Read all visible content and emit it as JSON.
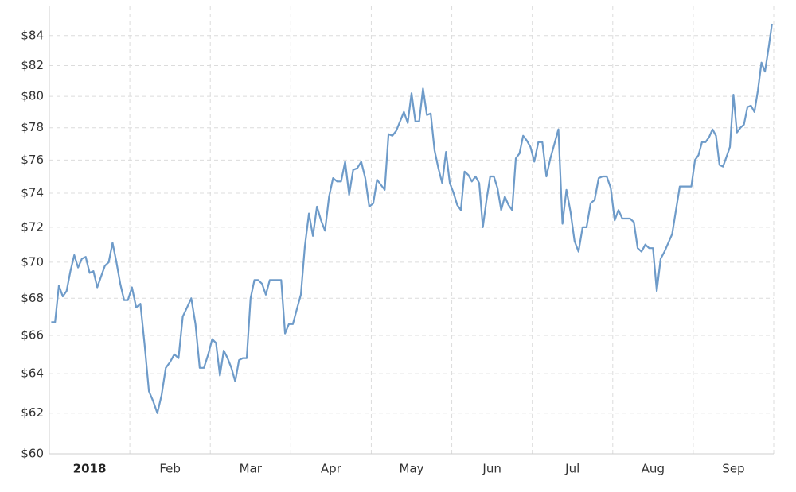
{
  "chart_data": {
    "type": "line",
    "color": "#6e9bc9",
    "log_scale": true,
    "grid": true,
    "ylim": [
      60,
      86
    ],
    "yticks": [
      {
        "value": 60,
        "label": "$60"
      },
      {
        "value": 62,
        "label": "$62"
      },
      {
        "value": 64,
        "label": "$64"
      },
      {
        "value": 66,
        "label": "$66"
      },
      {
        "value": 68,
        "label": "$68"
      },
      {
        "value": 70,
        "label": "$70"
      },
      {
        "value": 72,
        "label": "$72"
      },
      {
        "value": 74,
        "label": "$74"
      },
      {
        "value": 76,
        "label": "$76"
      },
      {
        "value": 78,
        "label": "$78"
      },
      {
        "value": 80,
        "label": "$80"
      },
      {
        "value": 82,
        "label": "$82"
      },
      {
        "value": 84,
        "label": "$84"
      }
    ],
    "months": [
      {
        "label": "2018",
        "values": [
          66.7,
          66.7,
          68.7,
          68.1,
          68.4,
          69.5,
          70.4,
          69.7,
          70.2,
          70.3,
          69.4,
          69.5,
          68.6,
          69.2,
          69.8,
          70.0,
          71.1,
          70.0,
          68.8,
          67.9,
          67.9
        ]
      },
      {
        "label": "Feb",
        "values": [
          68.6,
          67.5,
          67.7,
          65.5,
          63.1,
          62.6,
          62.0,
          62.9,
          64.3,
          64.6,
          65.0,
          64.8,
          67.0,
          67.5,
          68.0,
          66.6,
          64.3,
          64.3,
          65.0
        ]
      },
      {
        "label": "Mar",
        "values": [
          65.8,
          65.6,
          63.9,
          65.2,
          64.8,
          64.3,
          63.6,
          64.7,
          64.8,
          64.8,
          68.0,
          69.0,
          69.0,
          68.8,
          68.2,
          69.0,
          69.0,
          69.0,
          69.0,
          66.1,
          66.6
        ]
      },
      {
        "label": "Apr",
        "values": [
          66.6,
          67.4,
          68.2,
          70.9,
          72.8,
          71.5,
          73.2,
          72.4,
          71.8,
          73.8,
          74.9,
          74.7,
          74.7,
          75.9,
          73.9,
          75.4,
          75.5,
          75.9,
          74.9,
          73.2
        ]
      },
      {
        "label": "May",
        "values": [
          73.4,
          74.8,
          74.5,
          74.2,
          77.6,
          77.5,
          77.8,
          78.4,
          79.0,
          78.3,
          80.2,
          78.4,
          78.4,
          80.5,
          78.8,
          78.9,
          76.6,
          75.5,
          74.6,
          76.5,
          74.6
        ]
      },
      {
        "label": "Jun",
        "values": [
          74.0,
          73.3,
          73.0,
          75.3,
          75.1,
          74.7,
          75.0,
          74.6,
          72.0,
          73.6,
          75.0,
          75.0,
          74.3,
          73.0,
          73.8,
          73.3,
          73.0,
          76.1,
          76.4,
          77.5,
          77.2,
          76.8
        ]
      },
      {
        "label": "Jul",
        "values": [
          75.9,
          77.1,
          77.1,
          75.0,
          76.1,
          77.0,
          77.9,
          72.2,
          74.2,
          72.9,
          71.2,
          70.6,
          72.0,
          72.0,
          73.4,
          73.6,
          74.9,
          75.0,
          75.0,
          74.3
        ]
      },
      {
        "label": "Aug",
        "values": [
          72.4,
          73.0,
          72.5,
          72.5,
          72.5,
          72.3,
          70.8,
          70.6,
          71.0,
          70.8,
          70.8,
          68.4,
          70.2,
          70.6,
          71.1,
          71.6,
          73.0,
          74.4,
          74.4,
          74.4,
          74.4
        ]
      },
      {
        "label": "Sep",
        "values": [
          76.0,
          76.3,
          77.1,
          77.1,
          77.4,
          77.9,
          77.5,
          75.7,
          75.6,
          76.2,
          76.8,
          80.1,
          77.7,
          78.0,
          78.2,
          79.3,
          79.4,
          79.0,
          80.4,
          82.2,
          81.6,
          83.1,
          84.8
        ]
      }
    ]
  }
}
